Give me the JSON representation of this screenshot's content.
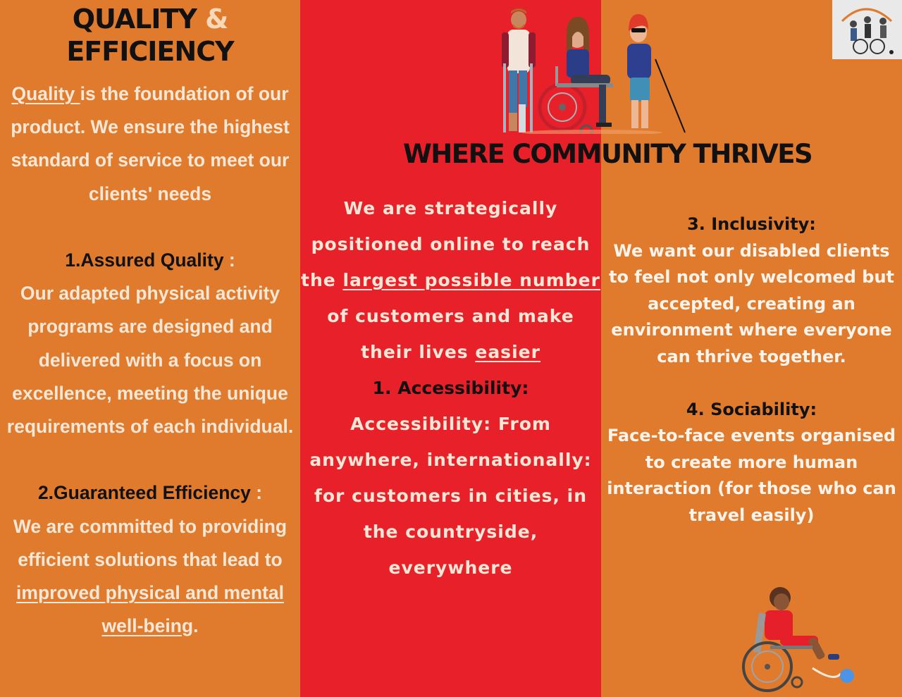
{
  "left": {
    "title_line1": "QUALITY",
    "title_amp": "&",
    "title_line2": "EFFICIENCY",
    "quality_word": "Quality ",
    "intro_rest": "is the foundation of our product. We ensure the highest standard of service to meet our clients' needs",
    "item1_heading": "1.Assured Quality",
    "item1_colon": " :",
    "item1_body": "Our adapted physical activity programs are designed and delivered with a focus on excellence, meeting the unique requirements of each individual.",
    "item2_heading": "2.Guaranteed Efficiency",
    "item2_colon": " :",
    "item2_body_start": "We are committed to providing   efficient solutions that lead to ",
    "item2_link": "improved physical and mental well-bein",
    "item2_end": "g."
  },
  "middle": {
    "title": "WHERE COMMUNITY THRIVES",
    "p1_start": "We are strategically positioned online to reach the ",
    "p1_link1": "largest possible number",
    "p1_mid": " of customers and make their lives ",
    "p1_link2": "easier",
    "item1_heading": "1. Accessibility:",
    "item1_body": "Accessibility: From anywhere, internationally: for customers in cities, in the countryside, everywhere"
  },
  "right": {
    "item3_heading": "3. Inclusivity:",
    "item3_body": "We want our disabled clients to feel not only welcomed but accepted, creating an environment where everyone can thrive together.",
    "item4_heading": "4. Sociability:",
    "item4_body": "Face-to-face events organised to create more human interaction (for those who can travel easily)"
  },
  "colors": {
    "orange": "#E07B2E",
    "red": "#E8202A",
    "text_light": "#F6E7D6",
    "text_dark": "#111111"
  },
  "images": {
    "people": "people-with-disabilities-illustration",
    "logo": "adaptive-sports-logo",
    "child": "child-in-wheelchair-kicking-ball"
  }
}
